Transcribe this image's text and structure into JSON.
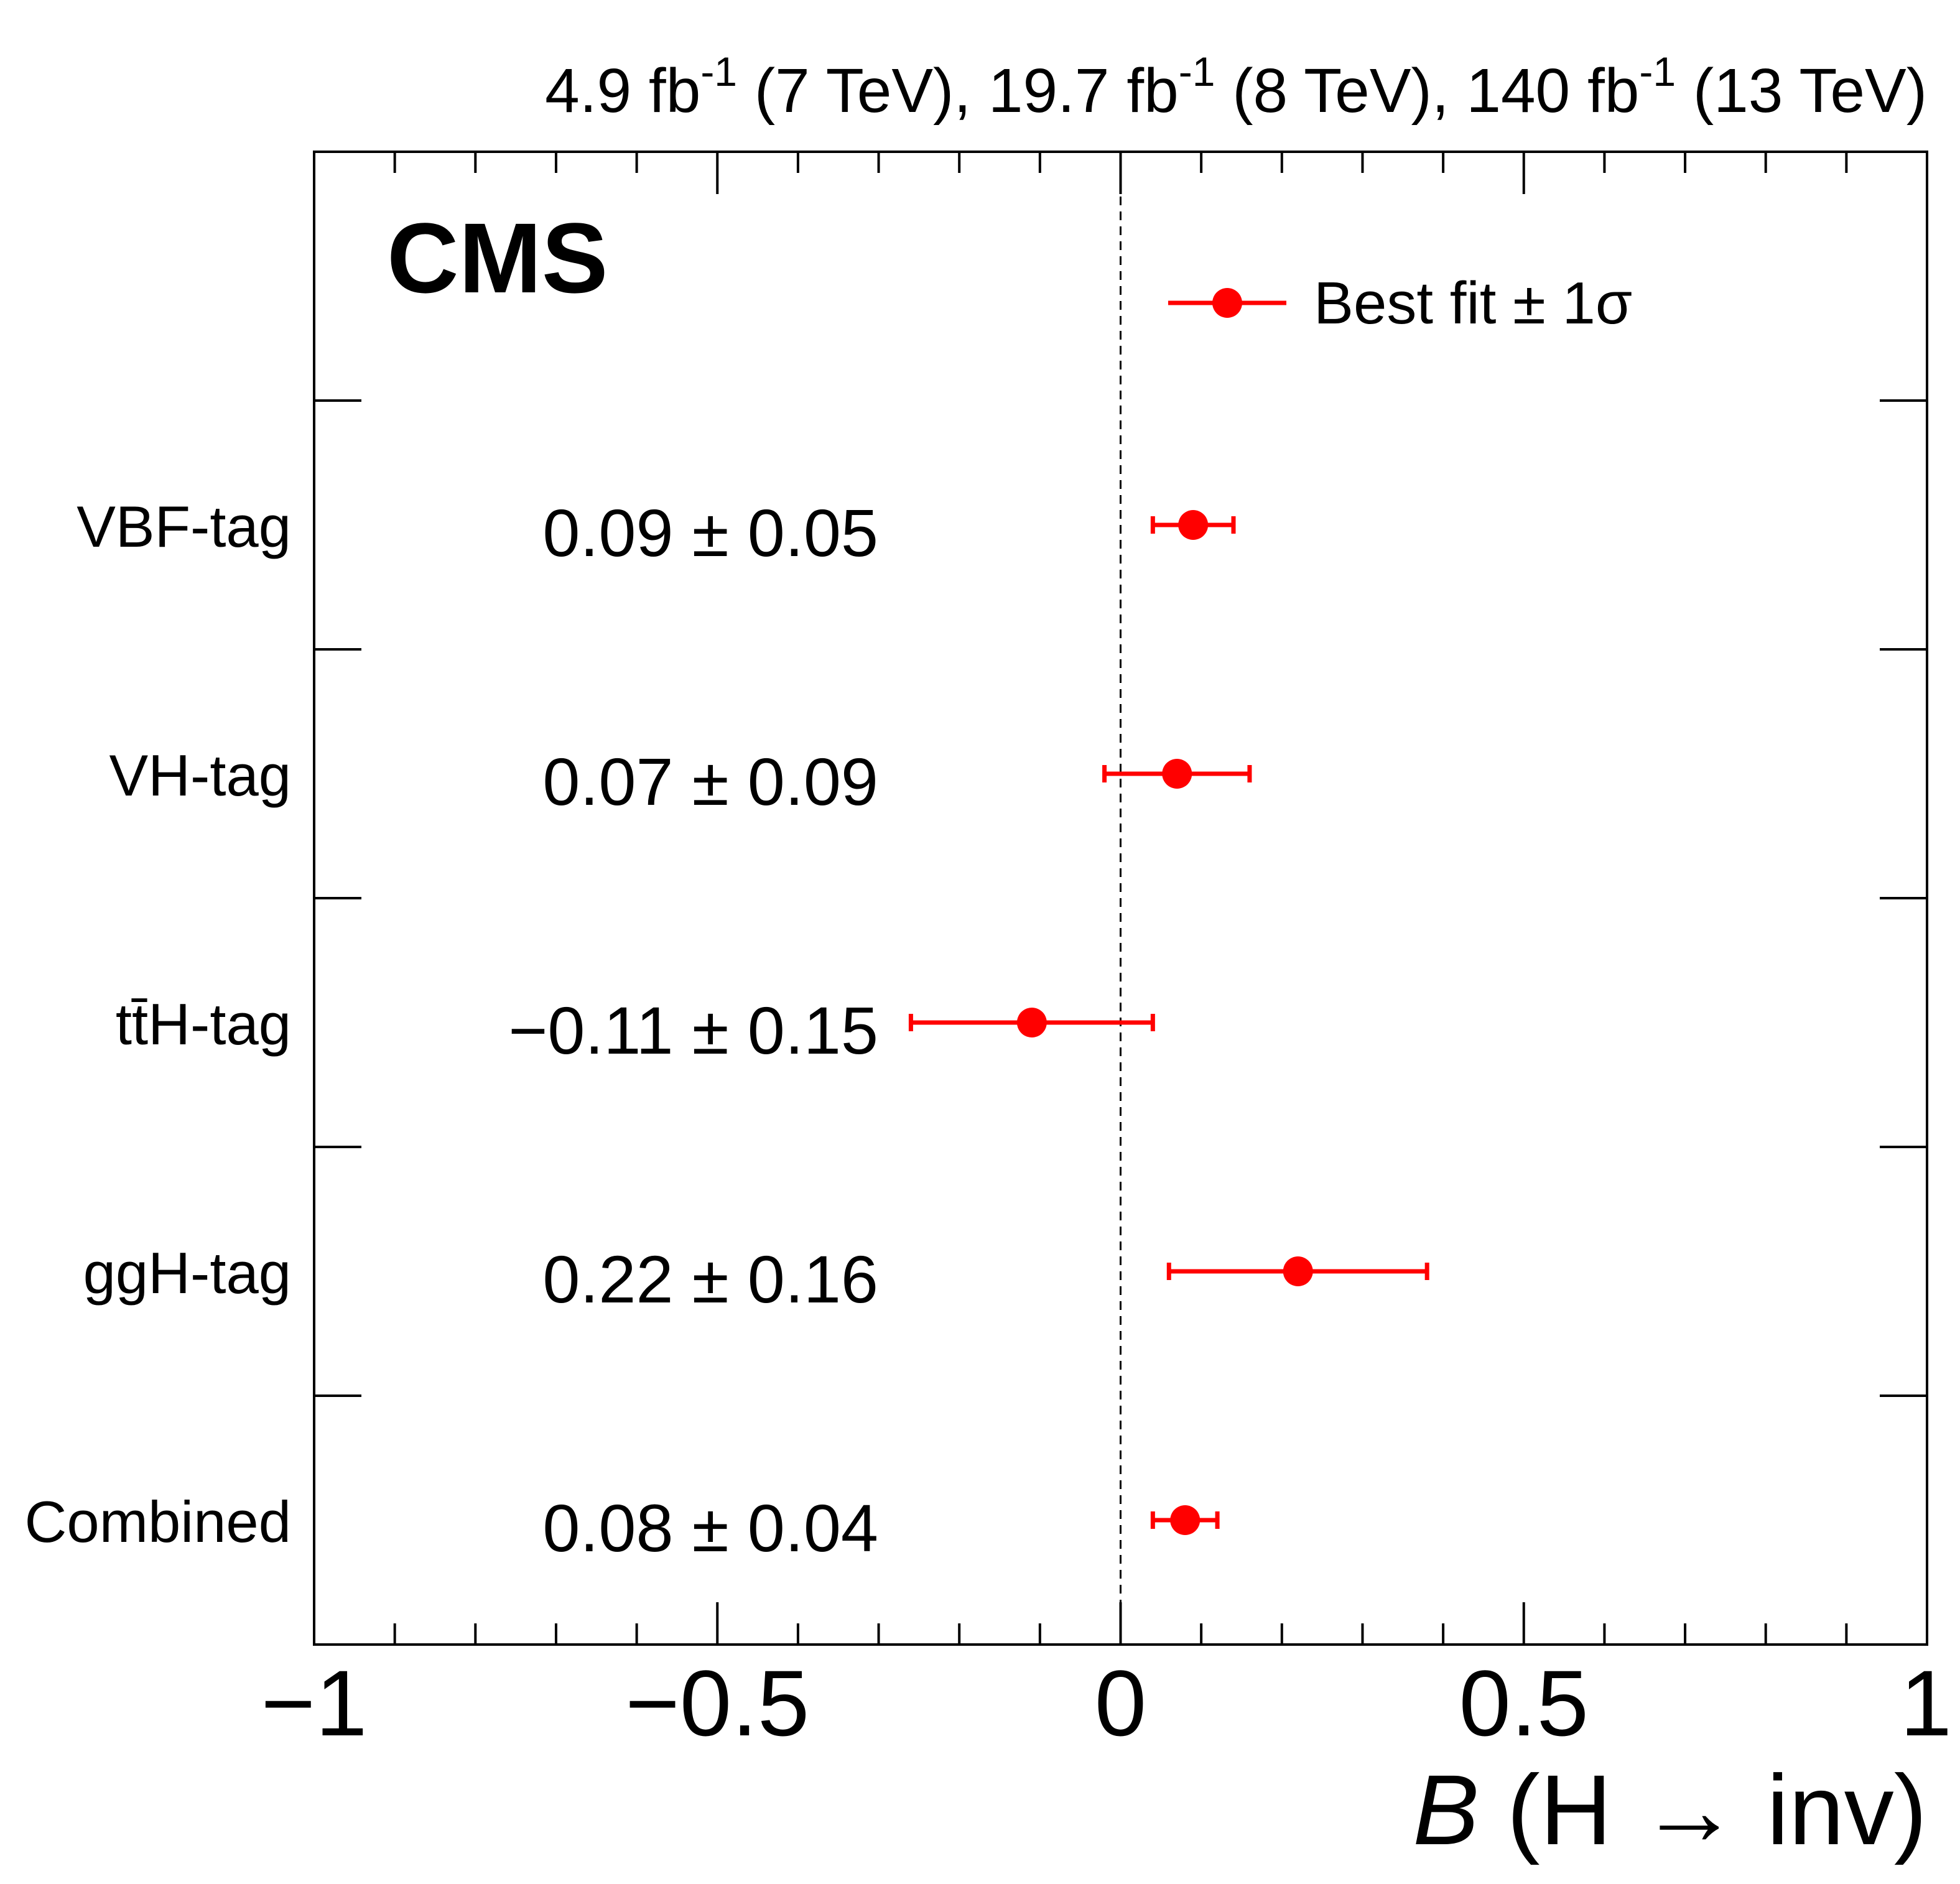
{
  "chart_data": {
    "type": "forest",
    "experiment_label": "CMS",
    "lumi_label": {
      "parts": [
        {
          "value": "4.9",
          "unit": "fb",
          "sup": "-1",
          "energy": "(7 TeV),"
        },
        {
          "value": "19.7",
          "unit": "fb",
          "sup": "-1",
          "energy": "(8 TeV),"
        },
        {
          "value": "140",
          "unit": "fb",
          "sup": "-1",
          "energy": "(13 TeV)"
        }
      ]
    },
    "xlabel": {
      "symbol": "B",
      "rest": "(H → inv)"
    },
    "xlim": [
      -1,
      1
    ],
    "xticks": [
      {
        "value": -1,
        "label": "−1"
      },
      {
        "value": -0.5,
        "label": "−0.5"
      },
      {
        "value": 0,
        "label": "0"
      },
      {
        "value": 0.5,
        "label": "0.5"
      },
      {
        "value": 1,
        "label": "1"
      }
    ],
    "minor_tick_step": 0.1,
    "reference_line": 0,
    "legend": {
      "label": "Best fit ± 1σ",
      "position": "top-right"
    },
    "marker_color": "#ff0000",
    "categories": [
      {
        "label": "VBF-tag",
        "central": 0.09,
        "err_low": 0.05,
        "err_high": 0.05,
        "text": "0.09 ± 0.05"
      },
      {
        "label": "VH-tag",
        "central": 0.07,
        "err_low": 0.09,
        "err_high": 0.09,
        "text": "0.07 ± 0.09"
      },
      {
        "label": "tt̄H-tag",
        "central": -0.11,
        "err_low": 0.15,
        "err_high": 0.15,
        "text": "−0.11 ± 0.15"
      },
      {
        "label": "ggH-tag",
        "central": 0.22,
        "err_low": 0.16,
        "err_high": 0.16,
        "text": "0.22 ± 0.16"
      },
      {
        "label": "Combined",
        "central": 0.08,
        "err_low": 0.04,
        "err_high": 0.04,
        "text": "0.08 ± 0.04"
      }
    ]
  }
}
